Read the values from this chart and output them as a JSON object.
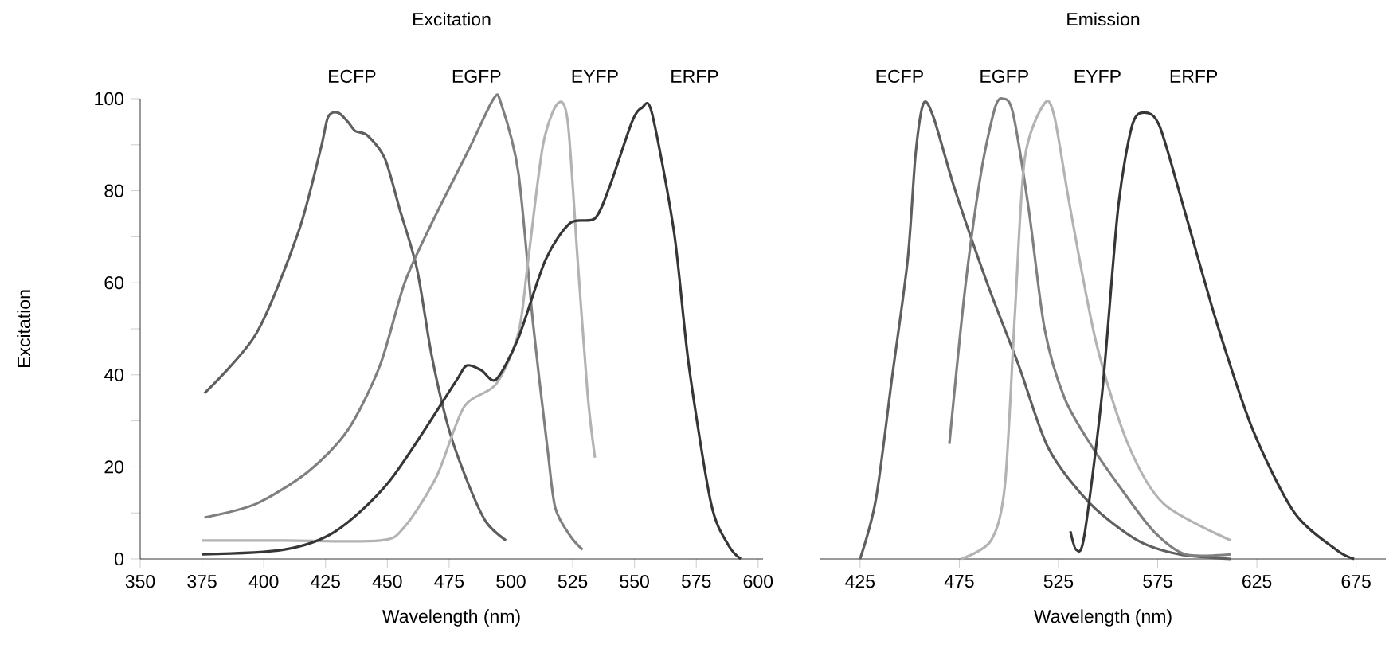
{
  "chart_data": [
    {
      "type": "line",
      "title": "Excitation",
      "xlabel": "Wavelength (nm)",
      "ylabel": "Excitation",
      "xlim": [
        350,
        602
      ],
      "ylim": [
        0,
        100
      ],
      "xticks": [
        350,
        375,
        400,
        425,
        450,
        475,
        500,
        525,
        550,
        575,
        600
      ],
      "yticks": [
        0,
        {
          "value": 10,
          "label": null
        },
        20,
        {
          "value": 30,
          "label": null
        },
        40,
        {
          "value": 50,
          "label": null
        },
        60,
        {
          "value": 70,
          "label": null
        },
        80,
        {
          "value": 90,
          "label": null
        },
        100
      ],
      "series": [
        {
          "name": "ECFP",
          "color": "#5f5f5f",
          "x": [
            376,
            397,
            414,
            423,
            426,
            430,
            434,
            437,
            442,
            449,
            455,
            462,
            468,
            475,
            483,
            490,
            498
          ],
          "values": [
            36,
            49,
            71,
            89,
            96,
            97,
            95,
            93,
            92,
            87,
            76,
            63,
            44,
            28,
            16,
            8,
            4
          ]
        },
        {
          "name": "EGFP",
          "color": "#7f7f7f",
          "x": [
            376,
            397,
            418,
            434,
            447,
            457,
            468,
            483,
            493,
            496,
            503,
            509,
            515,
            518,
            524,
            529
          ],
          "values": [
            9,
            12,
            19,
            28,
            42,
            60,
            73,
            89,
            100,
            99,
            84,
            51,
            23,
            11,
            5,
            2
          ]
        },
        {
          "name": "EYFP",
          "color": "#b3b3b3",
          "x": [
            375,
            408,
            447,
            457,
            470,
            481,
            494,
            503,
            507,
            513,
            519,
            523,
            527,
            531,
            534
          ],
          "values": [
            4,
            4,
            4,
            7,
            18,
            33,
            38,
            49,
            65,
            90,
            99,
            95,
            65,
            36,
            22
          ]
        },
        {
          "name": "ERFP",
          "color": "#363636",
          "x": [
            375,
            408,
            429,
            451,
            477,
            482,
            488,
            494,
            503,
            514,
            524,
            534,
            540,
            549,
            553,
            557,
            566,
            572,
            581,
            588,
            593
          ],
          "values": [
            1,
            2,
            6,
            17,
            38,
            42,
            41,
            39,
            48,
            65,
            73,
            74,
            81,
            95,
            98,
            97,
            71,
            42,
            12,
            3,
            0
          ]
        }
      ]
    },
    {
      "type": "line",
      "title": "Emission",
      "xlabel": "Wavelength (nm)",
      "tick_labels": "x",
      "xlim": [
        405,
        690
      ],
      "ylim": [
        0,
        100
      ],
      "xticks": [
        425,
        475,
        525,
        575,
        625,
        675
      ],
      "series": [
        {
          "name": "ECFP",
          "color": "#5f5f5f",
          "x": [
            425,
            433,
            441,
            449,
            453,
            457,
            462,
            473,
            489,
            505,
            520,
            541,
            565,
            586,
            612
          ],
          "values": [
            0,
            13,
            39,
            65,
            88,
            99,
            96,
            80,
            60,
            42,
            24,
            12,
            4,
            1,
            0
          ]
        },
        {
          "name": "EGFP",
          "color": "#7f7f7f",
          "x": [
            470,
            478,
            486,
            493,
            497,
            502,
            510,
            518,
            528,
            541,
            557,
            573,
            589,
            612
          ],
          "values": [
            25,
            59,
            84,
            98,
            100,
            97,
            76,
            50,
            35,
            25,
            15,
            6,
            1,
            1
          ]
        },
        {
          "name": "EYFP",
          "color": "#b3b3b3",
          "x": [
            476,
            491,
            498,
            503,
            508,
            518,
            523,
            531,
            544,
            560,
            578,
            612
          ],
          "values": [
            0,
            4,
            16,
            53,
            87,
            99,
            96,
            76,
            47,
            25,
            12,
            4
          ]
        },
        {
          "name": "ERFP",
          "color": "#363636",
          "x": [
            531,
            534,
            538,
            547,
            555,
            562,
            568,
            576,
            589,
            605,
            623,
            644,
            665,
            674
          ],
          "values": [
            6,
            2,
            5,
            36,
            76,
            94,
            97,
            94,
            75,
            51,
            28,
            10,
            2,
            0
          ]
        }
      ]
    }
  ]
}
